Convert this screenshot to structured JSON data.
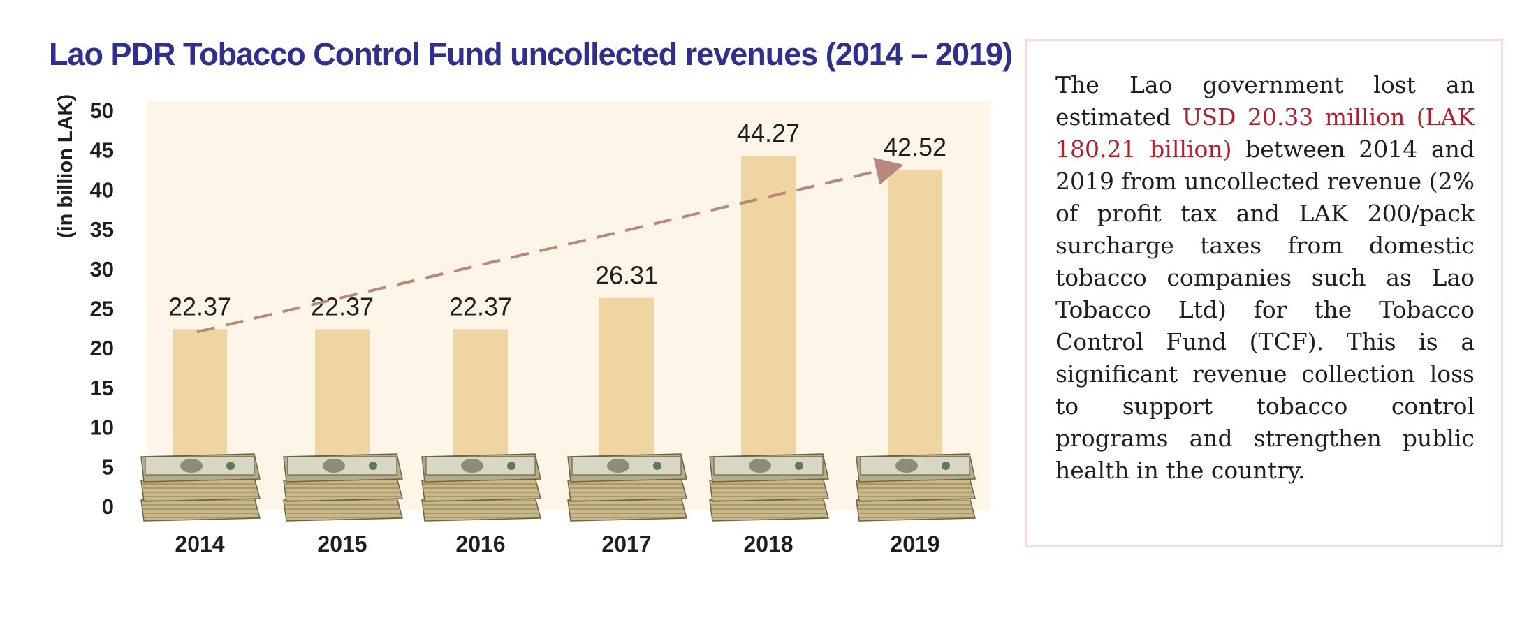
{
  "chart_data": {
    "type": "bar",
    "title": "Lao PDR Tobacco Control Fund uncollected revenues (2014 – 2019)",
    "ylabel": "(in billion LAK)",
    "xlabel": "",
    "ylim": [
      0,
      50
    ],
    "yticks": [
      0,
      5,
      10,
      15,
      20,
      25,
      30,
      35,
      40,
      45,
      50
    ],
    "categories": [
      "2014",
      "2015",
      "2016",
      "2017",
      "2018",
      "2019"
    ],
    "values": [
      22.37,
      22.37,
      22.37,
      26.31,
      44.27,
      42.52
    ],
    "value_labels": [
      "22.37",
      "22.37",
      "22.37",
      "26.31",
      "44.27",
      "42.52"
    ],
    "trend_arrow": {
      "from": "2014",
      "to": "2019",
      "style": "dashed"
    },
    "colors": {
      "bar": "#efd5a2",
      "plot_background": "#fdf5e8",
      "arrow": "#b8877e",
      "title": "#2f2f8e"
    }
  },
  "panel": {
    "part1": "The Lao government lost an estimated ",
    "highlight": "USD 20.33 million (LAK 180.21 billion)",
    "part2": " between 2014 and 2019 from uncollected revenue (2% of profit tax and LAK 200/pack surcharge taxes from domestic tobacco companies such as Lao Tobacco Ltd) for the Tobacco Control Fund (TCF). This is a significant revenue collection loss to support tobacco control programs and strengthen public health in the country.",
    "colors": {
      "highlight": "#b0202c",
      "border": "#f6dcd6"
    }
  }
}
